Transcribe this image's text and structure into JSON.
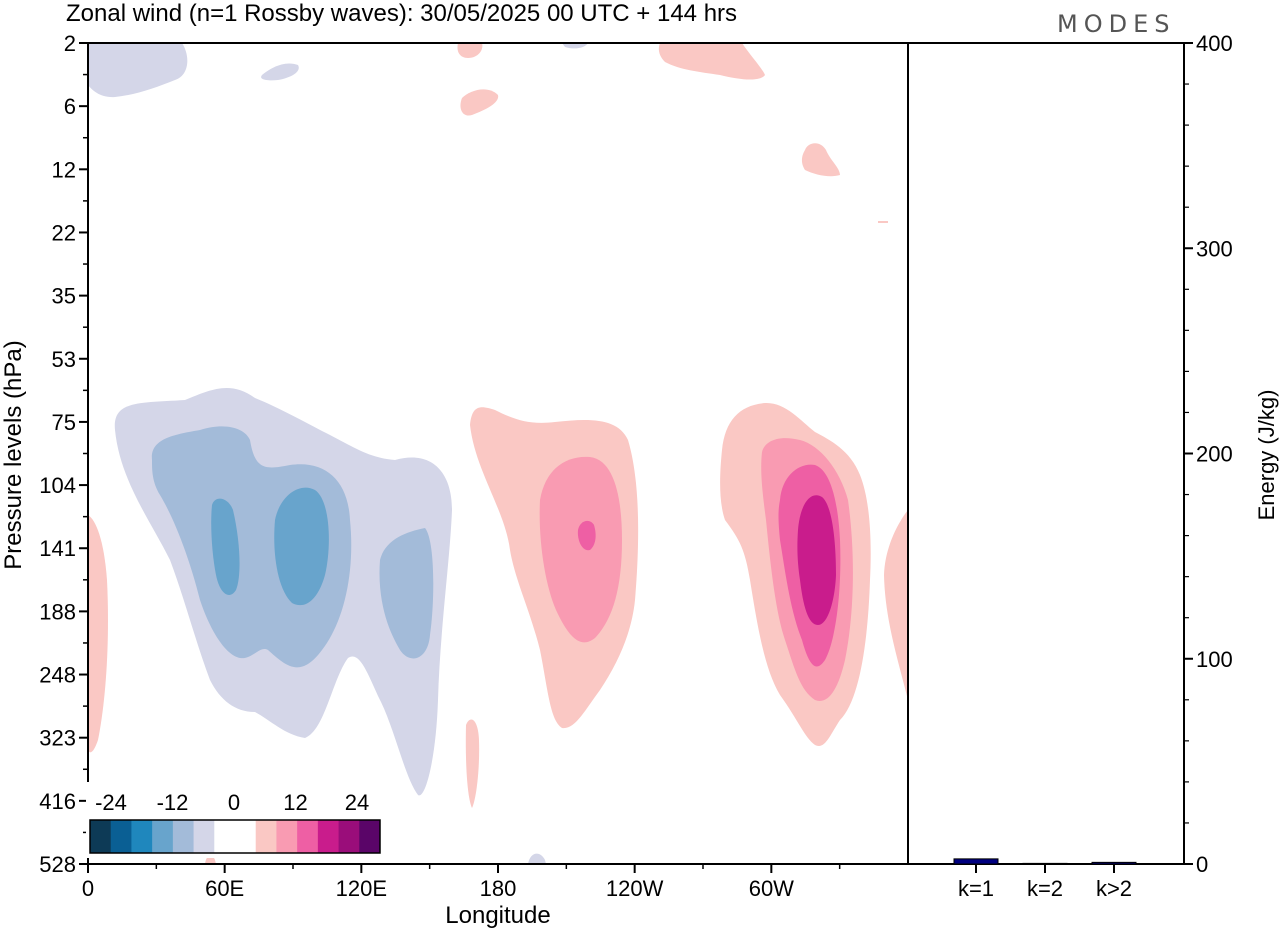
{
  "chart_data": [
    {
      "type": "heatmap",
      "title": "Zonal wind (n=1 Rossby waves):  30/05/2025  00 UTC  + 144 hrs",
      "xlabel": "Longitude",
      "ylabel": "Pressure levels (hPa)",
      "x_ticks": [
        "0",
        "60E",
        "120E",
        "180",
        "120W",
        "60W"
      ],
      "x_tick_values": [
        0,
        60,
        120,
        180,
        240,
        300
      ],
      "xlim": [
        0,
        360
      ],
      "y_ticks": [
        "2",
        "6",
        "12",
        "22",
        "35",
        "53",
        "75",
        "104",
        "141",
        "188",
        "248",
        "323",
        "416",
        "528"
      ],
      "y_scale": "categorical pressure levels (log-like, top to bottom)",
      "colorbar": {
        "tick_labels": [
          "-24",
          "-12",
          "0",
          "12",
          "24"
        ],
        "colors": [
          "#0d3a56",
          "#0a5f94",
          "#1f87bd",
          "#68a4cc",
          "#a3bbd9",
          "#d4d6e8",
          "#ffffff",
          "#ffffff",
          "#fac8c4",
          "#f99bb2",
          "#ee5fa4",
          "#c91c8c",
          "#9a0d7a",
          "#5a0568"
        ]
      },
      "features": [
        {
          "sign": "negative",
          "level": "core",
          "longitude": 90,
          "pressure": 141,
          "value": -12
        },
        {
          "sign": "negative",
          "level": "core",
          "longitude": 60,
          "pressure": 141,
          "value": -12
        },
        {
          "sign": "negative",
          "level": "secondary",
          "longitude": 140,
          "pressure": 160,
          "value": -8
        },
        {
          "sign": "positive",
          "level": "core",
          "longitude": 205,
          "pressure": 141,
          "value": 16
        },
        {
          "sign": "positive",
          "level": "core",
          "longitude": 320,
          "pressure": 141,
          "value": 20
        }
      ]
    },
    {
      "type": "bar",
      "categories": [
        "k=1",
        "k=2",
        "k>2"
      ],
      "values": [
        2.5,
        0.3,
        0.8
      ],
      "ylabel": "Energy (J/kg)",
      "ylim": [
        0,
        400
      ],
      "y_ticks": [
        0,
        100,
        200,
        300,
        400
      ],
      "bar_color": "#000080"
    }
  ],
  "brand": {
    "label": "MODES"
  }
}
